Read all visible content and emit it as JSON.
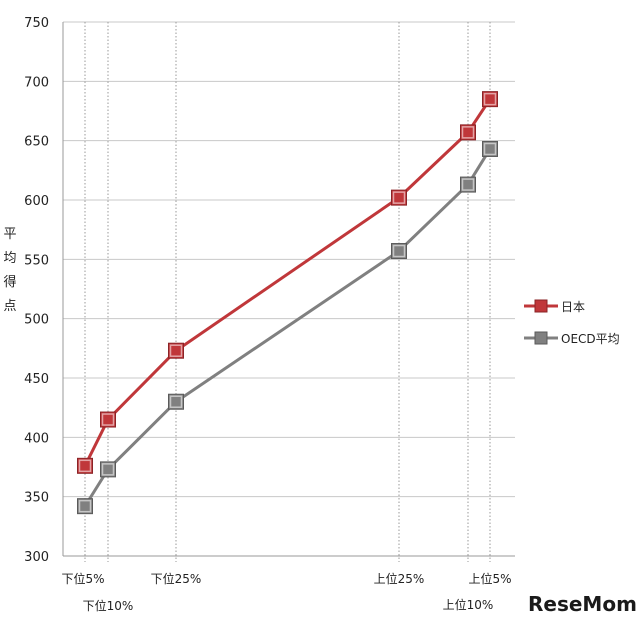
{
  "chart_data": {
    "type": "line",
    "ylabel": "平均得点",
    "ylim": [
      300,
      750
    ],
    "yticks": [
      300,
      350,
      400,
      450,
      500,
      550,
      600,
      650,
      700,
      750
    ],
    "x": [
      5,
      10,
      25,
      75,
      90,
      95
    ],
    "categories": [
      "下位5%",
      "下位10%",
      "下位25%",
      "上位25%",
      "上位10%",
      "上位5%"
    ],
    "series": [
      {
        "name": "日本",
        "color": "#c0373a",
        "values": [
          376,
          415,
          473,
          602,
          657,
          685
        ]
      },
      {
        "name": "OECD平均",
        "color": "#808080",
        "values": [
          342,
          373,
          430,
          557,
          613,
          643
        ]
      }
    ],
    "grid": true,
    "legend": "right"
  },
  "watermark": "ReseMom"
}
